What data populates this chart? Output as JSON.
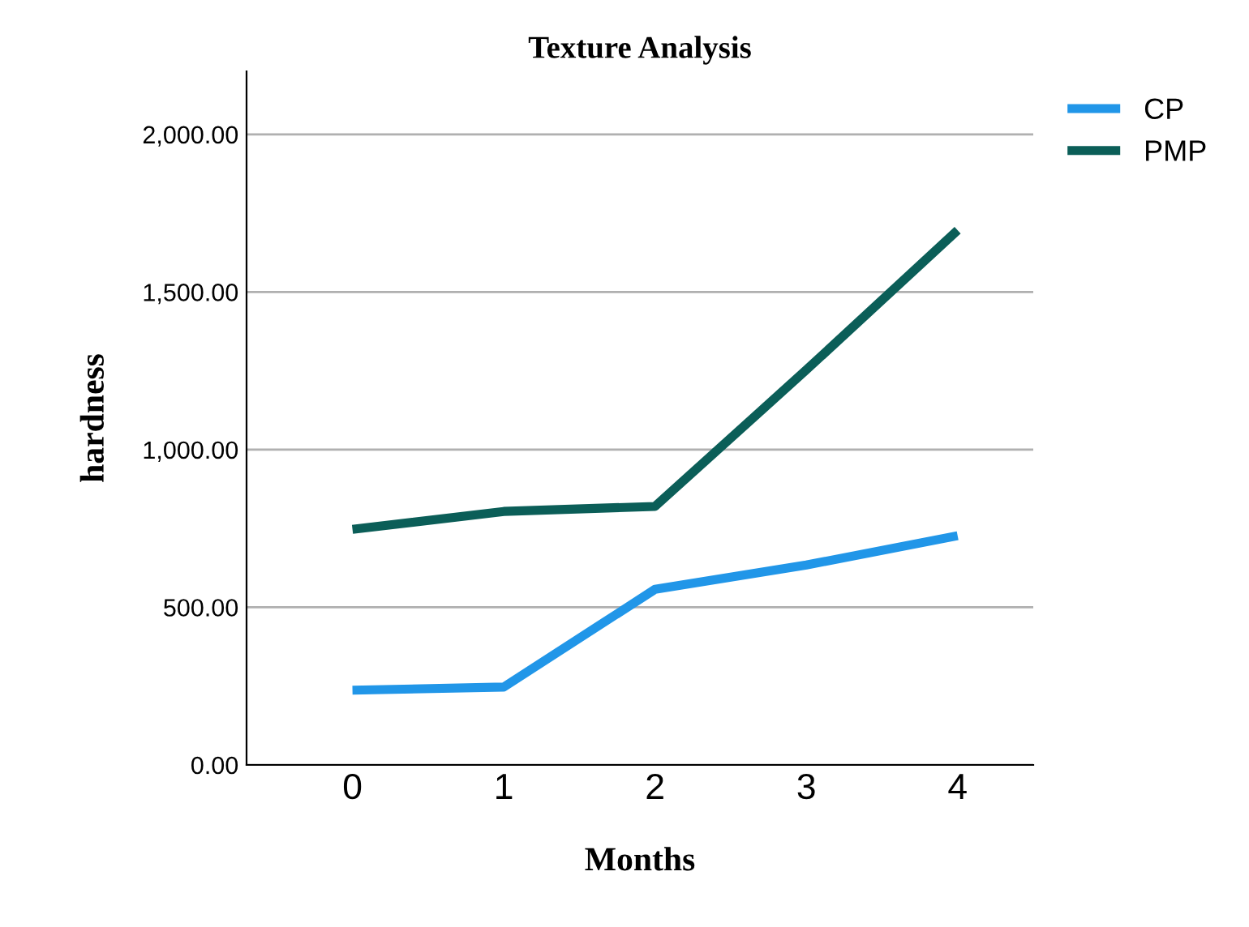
{
  "chart_data": {
    "type": "line",
    "title": "Texture Analysis",
    "xlabel": "Months",
    "ylabel": "hardness",
    "categories": [
      "0",
      "1",
      "2",
      "3",
      "4"
    ],
    "series": [
      {
        "name": "CP",
        "color": "#2196e8",
        "values": [
          237,
          247,
          557,
          634,
          727
        ]
      },
      {
        "name": "PMP",
        "color": "#0b5e58",
        "values": [
          747,
          804,
          820,
          1253,
          1696
        ]
      }
    ],
    "ylim": [
      0,
      2200
    ],
    "yticks": [
      {
        "value": 0,
        "label": "0.00"
      },
      {
        "value": 500,
        "label": "500.00"
      },
      {
        "value": 1000,
        "label": "1,000.00"
      },
      {
        "value": 1500,
        "label": "1,500.00"
      },
      {
        "value": 2000,
        "label": "2,000.00"
      }
    ],
    "grid": "y",
    "legend": "top right",
    "marker": "none",
    "line_style": "solid"
  }
}
